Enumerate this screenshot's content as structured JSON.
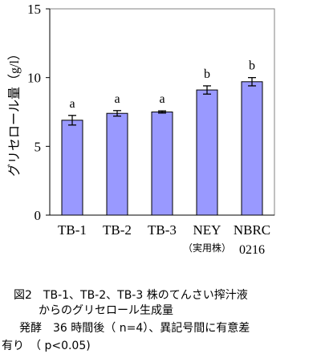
{
  "chart_data": {
    "type": "bar",
    "ylabel": "グリセロール量（g/l）",
    "ylim": [
      0,
      15
    ],
    "yticks": [
      0,
      5,
      10,
      15
    ],
    "categories": [
      {
        "line1": "TB-1",
        "line2": ""
      },
      {
        "line1": "TB-2",
        "line2": ""
      },
      {
        "line1": "TB-3",
        "line2": ""
      },
      {
        "line1": "NEY",
        "line2": "（実用株）"
      },
      {
        "line1": "NBRC",
        "line2": "0216"
      }
    ],
    "values": [
      6.9,
      7.4,
      7.5,
      9.1,
      9.7
    ],
    "errors": [
      0.35,
      0.2,
      0.08,
      0.3,
      0.3
    ],
    "significance_labels": [
      "a",
      "a",
      "a",
      "b",
      "b"
    ],
    "bar_color": "#9999ff",
    "grid": false
  },
  "caption": {
    "line1": "図2　TB-1、TB-2、TB-3 株のてんさい搾汁液",
    "line2": "からのグリセロール生成量",
    "line3": "発酵　36 時間後（ n=4）、異記号間に有意差",
    "line4": "有り　（ p<0.05)"
  }
}
